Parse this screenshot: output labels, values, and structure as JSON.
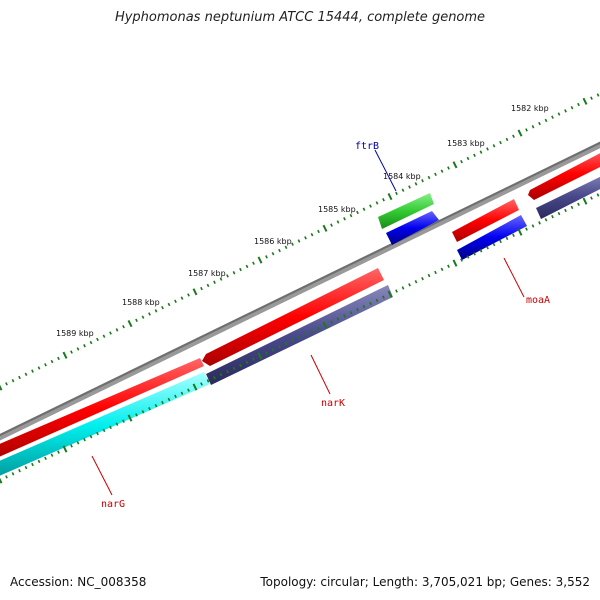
{
  "title": "Hyphomonas neptunium ATCC 15444, complete genome",
  "accession_text": "Accession: NC_008358",
  "summary_text": "Topology: circular; Length: 3,705,021 bp; Genes: 3,552",
  "kbp_labels": [
    "1582 kbp",
    "1583 kbp",
    "1584 kbp",
    "1585 kbp",
    "1586 kbp",
    "1587 kbp",
    "1588 kbp",
    "1589 kbp"
  ],
  "gene_labels": {
    "ftrB": "ftrB",
    "moaA": "moaA",
    "narK": "narK",
    "narG": "narG"
  },
  "colors": {
    "backbone": "#808080",
    "cds_forward": "#ff0000",
    "cds_reverse": "#4a4a8c",
    "green_feature": "#33cc33",
    "blue_feature": "#0000ee",
    "cyan_feature": "#00eeee",
    "tick": "#1a7a1a",
    "label_red": "#cc0000",
    "label_blue": "#000099"
  }
}
